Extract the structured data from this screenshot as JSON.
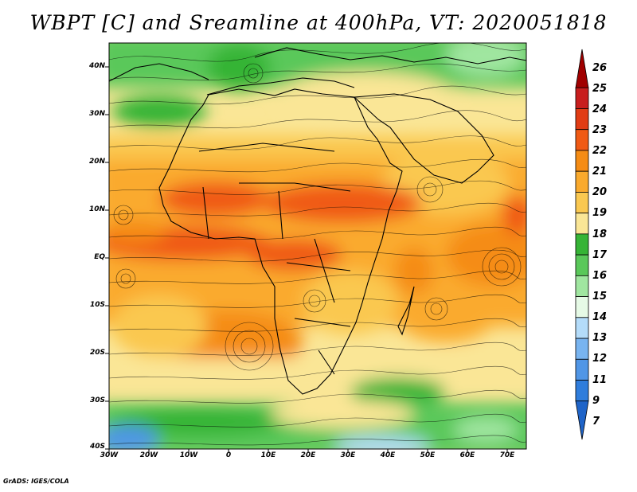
{
  "title": "WBPT [C] and Sreamline at 400hPa, VT: 2020051818",
  "footer": "GrADS: IGES/COLA",
  "map": {
    "lat_labels": [
      "40N",
      "30N",
      "20N",
      "10N",
      "EQ",
      "10S",
      "20S",
      "30S",
      "40S"
    ],
    "lon_labels": [
      "30W",
      "20W",
      "10W",
      "0",
      "10E",
      "20E",
      "30E",
      "40E",
      "50E",
      "60E",
      "70E"
    ]
  },
  "colorbar": {
    "labels": [
      "26",
      "25",
      "24",
      "23",
      "22",
      "21",
      "20",
      "19",
      "18",
      "17",
      "16",
      "15",
      "14",
      "13",
      "12",
      "11",
      "9",
      "7"
    ],
    "colors": [
      "#a00000",
      "#c81e1e",
      "#e13c14",
      "#f05a14",
      "#f58c14",
      "#faaa2d",
      "#fac850",
      "#fae696",
      "#36b436",
      "#5ac85a",
      "#a0e6a0",
      "#e6fae6",
      "#b4dcfa",
      "#78b4f0",
      "#5096e6",
      "#2f7ddc",
      "#1f64c8"
    ]
  },
  "colors": {
    "outline": "#000000"
  }
}
